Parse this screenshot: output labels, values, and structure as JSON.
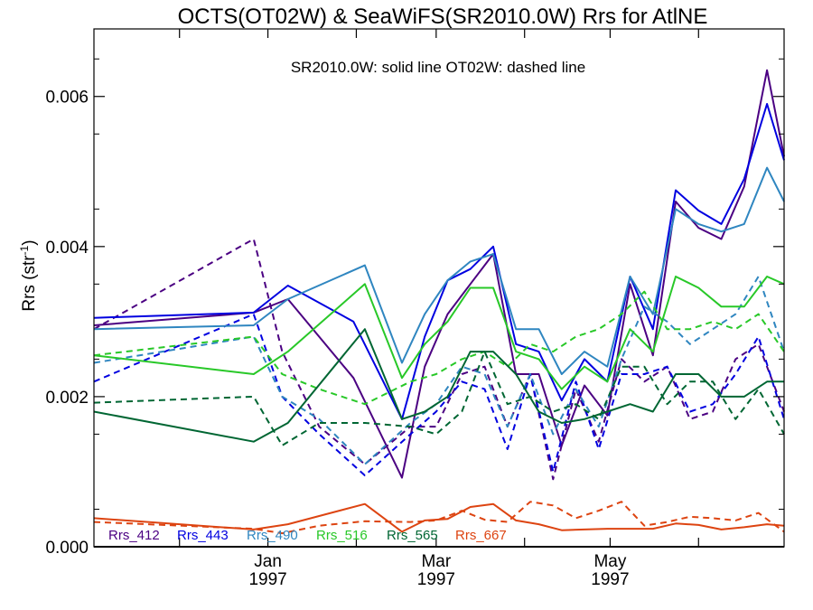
{
  "chart_data": {
    "type": "line",
    "title": "OCTS(OT02W) & SeaWiFS(SR2010.0W)  Rrs for AtlNE",
    "annotation": "SR2010.0W: solid line   OT02W: dashed line",
    "ylabel": "Rrs (str",
    "ylabel_sup": "-1",
    "ylabel_close": ")",
    "ylim": [
      0.0,
      0.0069
    ],
    "xlim": [
      "1996-11-01",
      "1997-07-01"
    ],
    "y_ticks": [
      "0.000",
      "0.002",
      "0.004",
      "0.006"
    ],
    "x_ticks": [
      {
        "date": "1997-01-01",
        "label": "Jan",
        "year": "1997"
      },
      {
        "date": "1997-03-01",
        "label": "Mar",
        "year": "1997"
      },
      {
        "date": "1997-05-01",
        "label": "May",
        "year": "1997"
      }
    ],
    "grid": false,
    "legend_position": "bottom-left",
    "series": [
      {
        "name": "Rrs_412",
        "color": "#4b0082",
        "solid": {
          "x": [
            "1996-11-01",
            "1996-12-27",
            "1997-01-08",
            "1997-01-31",
            "1997-02-17",
            "1997-02-25",
            "1997-03-05",
            "1997-03-13",
            "1997-03-21",
            "1997-03-29",
            "1997-04-06",
            "1997-04-14",
            "1997-04-22",
            "1997-04-30",
            "1997-05-08",
            "1997-05-16",
            "1997-05-24",
            "1997-06-01",
            "1997-06-09",
            "1997-06-17",
            "1997-06-25",
            "1997-07-01"
          ],
          "y": [
            0.00295,
            0.00312,
            0.0033,
            0.00225,
            0.00092,
            0.0024,
            0.0031,
            0.0035,
            0.0039,
            0.0023,
            0.0023,
            0.00135,
            0.00215,
            0.00175,
            0.0035,
            0.00255,
            0.0046,
            0.00425,
            0.0041,
            0.0048,
            0.00635,
            0.0052
          ]
        },
        "dashed": {
          "x": [
            "1996-11-01",
            "1996-12-27",
            "1997-01-06",
            "1997-01-19",
            "1997-02-04",
            "1997-02-20",
            "1997-03-01",
            "1997-03-10",
            "1997-03-18",
            "1997-03-26",
            "1997-04-03",
            "1997-04-11",
            "1997-04-19",
            "1997-04-27",
            "1997-05-05",
            "1997-05-13",
            "1997-05-21",
            "1997-05-29",
            "1997-06-06",
            "1997-06-14",
            "1997-06-22",
            "1997-07-01"
          ],
          "y": [
            0.0029,
            0.0041,
            0.0026,
            0.0016,
            0.0011,
            0.0016,
            0.0016,
            0.0023,
            0.0024,
            0.0016,
            0.0023,
            0.0009,
            0.0021,
            0.0014,
            0.0025,
            0.0022,
            0.0024,
            0.0017,
            0.0018,
            0.0025,
            0.0027,
            0.0018
          ]
        }
      },
      {
        "name": "Rrs_443",
        "color": "#0000e0",
        "solid": {
          "x": [
            "1996-11-01",
            "1996-12-27",
            "1997-01-08",
            "1997-01-31",
            "1997-02-17",
            "1997-02-25",
            "1997-03-05",
            "1997-03-13",
            "1997-03-21",
            "1997-03-29",
            "1997-04-06",
            "1997-04-14",
            "1997-04-22",
            "1997-04-30",
            "1997-05-08",
            "1997-05-16",
            "1997-05-24",
            "1997-06-01",
            "1997-06-09",
            "1997-06-17",
            "1997-06-25",
            "1997-07-01"
          ],
          "y": [
            0.00305,
            0.00312,
            0.00348,
            0.003,
            0.0017,
            0.0028,
            0.00355,
            0.0037,
            0.004,
            0.0027,
            0.0026,
            0.00195,
            0.0025,
            0.0022,
            0.0036,
            0.0029,
            0.00475,
            0.00448,
            0.0043,
            0.0049,
            0.0059,
            0.00515
          ]
        },
        "dashed": {
          "x": [
            "1996-11-01",
            "1996-12-27",
            "1997-01-06",
            "1997-01-19",
            "1997-02-04",
            "1997-02-20",
            "1997-03-01",
            "1997-03-10",
            "1997-03-18",
            "1997-03-26",
            "1997-04-03",
            "1997-04-11",
            "1997-04-19",
            "1997-04-27",
            "1997-05-05",
            "1997-05-13",
            "1997-05-21",
            "1997-05-29",
            "1997-06-06",
            "1997-06-14",
            "1997-06-22",
            "1997-07-01"
          ],
          "y": [
            0.0022,
            0.0031,
            0.002,
            0.0015,
            0.00095,
            0.0015,
            0.0018,
            0.0022,
            0.0021,
            0.0013,
            0.0023,
            0.001,
            0.0022,
            0.0013,
            0.0023,
            0.0023,
            0.0024,
            0.0018,
            0.0019,
            0.0023,
            0.0028,
            0.0017
          ]
        }
      },
      {
        "name": "Rrs_490",
        "color": "#2f86c0",
        "solid": {
          "x": [
            "1996-11-01",
            "1996-12-27",
            "1997-01-08",
            "1997-02-04",
            "1997-02-17",
            "1997-02-25",
            "1997-03-05",
            "1997-03-13",
            "1997-03-21",
            "1997-03-29",
            "1997-04-06",
            "1997-04-14",
            "1997-04-22",
            "1997-04-30",
            "1997-05-08",
            "1997-05-16",
            "1997-05-24",
            "1997-06-01",
            "1997-06-09",
            "1997-06-17",
            "1997-06-25",
            "1997-07-01"
          ],
          "y": [
            0.0029,
            0.00295,
            0.0033,
            0.00375,
            0.00245,
            0.0031,
            0.00355,
            0.0038,
            0.0039,
            0.0029,
            0.0029,
            0.0023,
            0.0026,
            0.0024,
            0.0036,
            0.0031,
            0.0045,
            0.0043,
            0.0042,
            0.0043,
            0.00505,
            0.0046
          ]
        },
        "dashed": {
          "x": [
            "1996-11-01",
            "1996-12-27",
            "1997-01-06",
            "1997-01-19",
            "1997-02-04",
            "1997-02-20",
            "1997-03-01",
            "1997-03-10",
            "1997-03-18",
            "1997-03-26",
            "1997-04-03",
            "1997-04-11",
            "1997-04-19",
            "1997-04-27",
            "1997-05-05",
            "1997-05-13",
            "1997-05-21",
            "1997-05-29",
            "1997-06-06",
            "1997-06-14",
            "1997-06-22",
            "1997-07-01"
          ],
          "y": [
            0.00245,
            0.0028,
            0.002,
            0.0017,
            0.0011,
            0.00165,
            0.0019,
            0.0024,
            0.0023,
            0.0016,
            0.0023,
            0.0015,
            0.0021,
            0.0016,
            0.0025,
            0.0032,
            0.003,
            0.0027,
            0.0029,
            0.0031,
            0.0036,
            0.0026
          ]
        }
      },
      {
        "name": "Rrs_516",
        "color": "#28c828",
        "solid": {
          "x": [
            "1996-11-01",
            "1996-12-27",
            "1997-01-08",
            "1997-02-04",
            "1997-02-17",
            "1997-02-25",
            "1997-03-05",
            "1997-03-13",
            "1997-03-21",
            "1997-03-29",
            "1997-04-06",
            "1997-04-14",
            "1997-04-22",
            "1997-04-30",
            "1997-05-08",
            "1997-05-16",
            "1997-05-24",
            "1997-06-01",
            "1997-06-09",
            "1997-06-17",
            "1997-06-25",
            "1997-07-01"
          ],
          "y": [
            0.00255,
            0.0023,
            0.0026,
            0.0035,
            0.00225,
            0.0027,
            0.003,
            0.00345,
            0.00345,
            0.0026,
            0.0025,
            0.0021,
            0.0024,
            0.0022,
            0.0029,
            0.0026,
            0.0036,
            0.00345,
            0.0032,
            0.0032,
            0.0036,
            0.0035
          ]
        },
        "dashed": {
          "x": [
            "1996-11-01",
            "1996-12-27",
            "1997-01-06",
            "1997-01-19",
            "1997-02-04",
            "1997-02-20",
            "1997-03-01",
            "1997-03-10",
            "1997-03-18",
            "1997-03-26",
            "1997-04-03",
            "1997-04-11",
            "1997-04-19",
            "1997-04-27",
            "1997-05-05",
            "1997-05-13",
            "1997-05-21",
            "1997-05-29",
            "1997-06-06",
            "1997-06-14",
            "1997-06-22",
            "1997-07-01"
          ],
          "y": [
            0.00255,
            0.0028,
            0.0023,
            0.0021,
            0.0019,
            0.0022,
            0.0023,
            0.0025,
            0.0026,
            0.0024,
            0.0027,
            0.0026,
            0.0028,
            0.0029,
            0.0031,
            0.0034,
            0.0029,
            0.0029,
            0.003,
            0.0029,
            0.0031,
            0.0026
          ]
        }
      },
      {
        "name": "Rrs_565",
        "color": "#006633",
        "solid": {
          "x": [
            "1996-11-01",
            "1996-12-27",
            "1997-01-08",
            "1997-02-04",
            "1997-02-17",
            "1997-02-25",
            "1997-03-05",
            "1997-03-13",
            "1997-03-21",
            "1997-03-29",
            "1997-04-06",
            "1997-04-14",
            "1997-04-22",
            "1997-04-30",
            "1997-05-08",
            "1997-05-16",
            "1997-05-24",
            "1997-06-01",
            "1997-06-09",
            "1997-06-17",
            "1997-06-25",
            "1997-07-01"
          ],
          "y": [
            0.0018,
            0.0014,
            0.00165,
            0.0029,
            0.0017,
            0.0018,
            0.002,
            0.0026,
            0.0026,
            0.0023,
            0.0018,
            0.00165,
            0.0017,
            0.0018,
            0.0019,
            0.0018,
            0.0023,
            0.0023,
            0.002,
            0.002,
            0.0022,
            0.0022
          ]
        },
        "dashed": {
          "x": [
            "1996-11-01",
            "1996-12-27",
            "1997-01-06",
            "1997-01-19",
            "1997-02-04",
            "1997-02-20",
            "1997-03-01",
            "1997-03-10",
            "1997-03-18",
            "1997-03-26",
            "1997-04-03",
            "1997-04-11",
            "1997-04-19",
            "1997-04-27",
            "1997-05-05",
            "1997-05-13",
            "1997-05-21",
            "1997-05-29",
            "1997-06-06",
            "1997-06-14",
            "1997-06-22",
            "1997-07-01"
          ],
          "y": [
            0.00192,
            0.002,
            0.00135,
            0.00165,
            0.00165,
            0.0016,
            0.0015,
            0.0018,
            0.0026,
            0.0019,
            0.002,
            0.0018,
            0.0019,
            0.0017,
            0.0024,
            0.0024,
            0.0019,
            0.0022,
            0.0022,
            0.0017,
            0.0021,
            0.0015
          ]
        }
      },
      {
        "name": "Rrs_667",
        "color": "#dd4411",
        "solid": {
          "x": [
            "1996-11-01",
            "1996-12-27",
            "1997-01-08",
            "1997-02-04",
            "1997-02-17",
            "1997-02-25",
            "1997-03-05",
            "1997-03-13",
            "1997-03-21",
            "1997-03-29",
            "1997-04-06",
            "1997-04-14",
            "1997-04-22",
            "1997-04-30",
            "1997-05-08",
            "1997-05-16",
            "1997-05-24",
            "1997-06-01",
            "1997-06-09",
            "1997-06-17",
            "1997-06-25",
            "1997-07-01"
          ],
          "y": [
            0.00038,
            0.00023,
            0.0003,
            0.00057,
            0.0002,
            0.00035,
            0.00037,
            0.00053,
            0.00057,
            0.00035,
            0.0003,
            0.00022,
            0.00023,
            0.00024,
            0.00024,
            0.00024,
            0.00031,
            0.00029,
            0.00023,
            0.00026,
            0.0003,
            0.00028
          ]
        },
        "dashed": {
          "x": [
            "1996-11-01",
            "1996-12-27",
            "1997-01-06",
            "1997-01-19",
            "1997-02-04",
            "1997-02-20",
            "1997-03-01",
            "1997-03-10",
            "1997-03-18",
            "1997-03-26",
            "1997-04-03",
            "1997-04-11",
            "1997-04-19",
            "1997-04-27",
            "1997-05-05",
            "1997-05-13",
            "1997-05-21",
            "1997-05-29",
            "1997-06-06",
            "1997-06-14",
            "1997-06-22",
            "1997-07-01"
          ],
          "y": [
            0.00033,
            0.00024,
            0.00018,
            0.00028,
            0.00034,
            0.00033,
            0.00035,
            0.00048,
            0.00036,
            0.00033,
            0.0006,
            0.00055,
            0.00038,
            0.00048,
            0.0006,
            0.00028,
            0.00033,
            0.0004,
            0.00038,
            0.00035,
            0.00045,
            0.0002
          ]
        }
      }
    ]
  }
}
